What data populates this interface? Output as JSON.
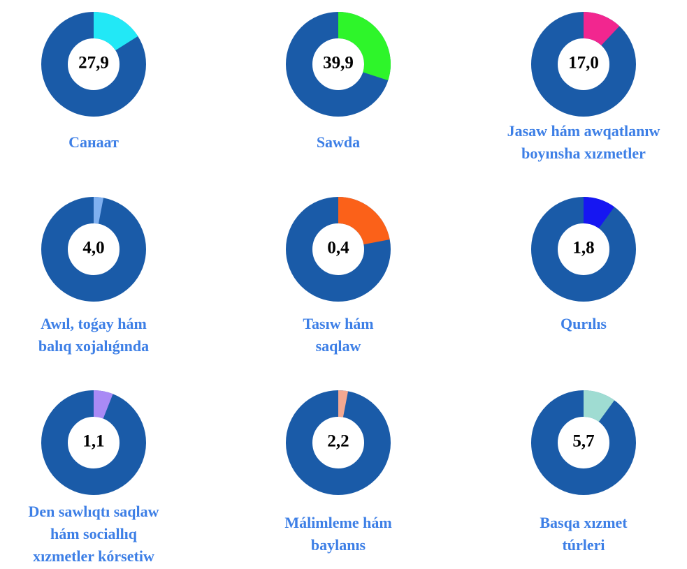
{
  "chart_data": [
    {
      "type": "donut",
      "title": [
        "Санаат"
      ],
      "value": 27.9,
      "value_label": "27,9",
      "slice": 16,
      "color": "#22e8f6",
      "base_color": "#1a5ba8"
    },
    {
      "type": "donut",
      "title": [
        "Sawda"
      ],
      "value": 39.9,
      "value_label": "39,9",
      "slice": 30,
      "color": "#2ef52a",
      "base_color": "#1a5ba8"
    },
    {
      "type": "donut",
      "title": [
        "Jasaw hám awqatlanıw",
        "boyınsha xızmetler"
      ],
      "value": 17.0,
      "value_label": "17,0",
      "slice": 12,
      "color": "#f2268f",
      "base_color": "#1a5ba8"
    },
    {
      "type": "donut",
      "title": [
        "Awıl, toǵay hám",
        "balıq xojalıǵında"
      ],
      "value": 4.0,
      "value_label": "4,0",
      "slice": 3,
      "color": "#7fb0f0",
      "base_color": "#1a5ba8"
    },
    {
      "type": "donut",
      "title": [
        "Tasıw hám",
        "saqlaw"
      ],
      "value": 0.4,
      "value_label": "0,4",
      "slice": 22,
      "color": "#fb6119",
      "base_color": "#1a5ba8"
    },
    {
      "type": "donut",
      "title": [
        "Qurılıs"
      ],
      "value": 1.8,
      "value_label": "1,8",
      "slice": 10,
      "color": "#1616f2",
      "base_color": "#1a5ba8"
    },
    {
      "type": "donut",
      "title": [
        "Den sawlıqtı saqlaw",
        "hám sociallıq",
        "xızmetler kórsetiw"
      ],
      "value": 1.1,
      "value_label": "1,1",
      "slice": 6,
      "color": "#a98af5",
      "base_color": "#1a5ba8"
    },
    {
      "type": "donut",
      "title": [
        "Málimleme hám",
        "baylanıs"
      ],
      "value": 2.2,
      "value_label": "2,2",
      "slice": 3,
      "color": "#f3a891",
      "base_color": "#1a5ba8"
    },
    {
      "type": "donut",
      "title": [
        "Basqa xızmet",
        "túrleri"
      ],
      "value": 5.7,
      "value_label": "5,7",
      "slice": 10,
      "color": "#9fdcd2",
      "base_color": "#1a5ba8"
    }
  ]
}
